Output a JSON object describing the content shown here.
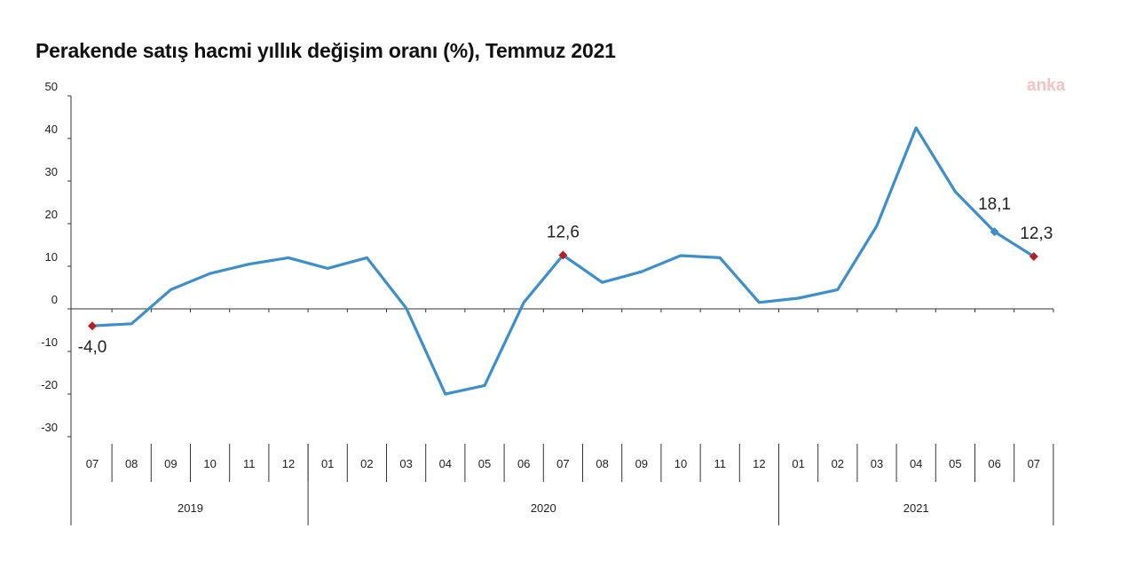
{
  "title": "Perakende satış hacmi yıllık değişim oranı (%), Temmuz 2021",
  "watermark": "anka",
  "colors": {
    "line": "#3d8fca",
    "marker": "#b22222",
    "highlight_marker": "#3d8fca",
    "axis": "#333333"
  },
  "chart_data": {
    "type": "line",
    "title": "Perakende satış hacmi yıllık değişim oranı (%), Temmuz 2021",
    "x": [
      "07",
      "08",
      "09",
      "10",
      "11",
      "12",
      "01",
      "02",
      "03",
      "04",
      "05",
      "06",
      "07",
      "08",
      "09",
      "10",
      "11",
      "12",
      "01",
      "02",
      "03",
      "04",
      "05",
      "06",
      "07"
    ],
    "years": [
      {
        "label": "2019",
        "start": 0,
        "end": 5
      },
      {
        "label": "2020",
        "start": 6,
        "end": 17
      },
      {
        "label": "2021",
        "start": 18,
        "end": 24
      }
    ],
    "series": [
      {
        "values": [
          -4.0,
          -3.5,
          4.5,
          8.3,
          10.5,
          12.0,
          9.5,
          12.0,
          0.2,
          -20.0,
          -18.0,
          1.5,
          12.6,
          6.2,
          8.7,
          12.5,
          12.0,
          1.5,
          2.5,
          4.5,
          19.5,
          42.5,
          27.5,
          18.1,
          12.3
        ]
      }
    ],
    "ylim": [
      -30,
      50
    ],
    "yticks": [
      50,
      40,
      30,
      20,
      10,
      0,
      -10,
      -20,
      -30
    ],
    "grid": false,
    "annotations": [
      {
        "index": 0,
        "text": "-4,0",
        "marker": "diamond-red"
      },
      {
        "index": 12,
        "text": "12,6",
        "marker": "diamond-red"
      },
      {
        "index": 23,
        "text": "18,1",
        "marker": "diamond-blue"
      },
      {
        "index": 24,
        "text": "12,3",
        "marker": "diamond-red"
      }
    ]
  }
}
